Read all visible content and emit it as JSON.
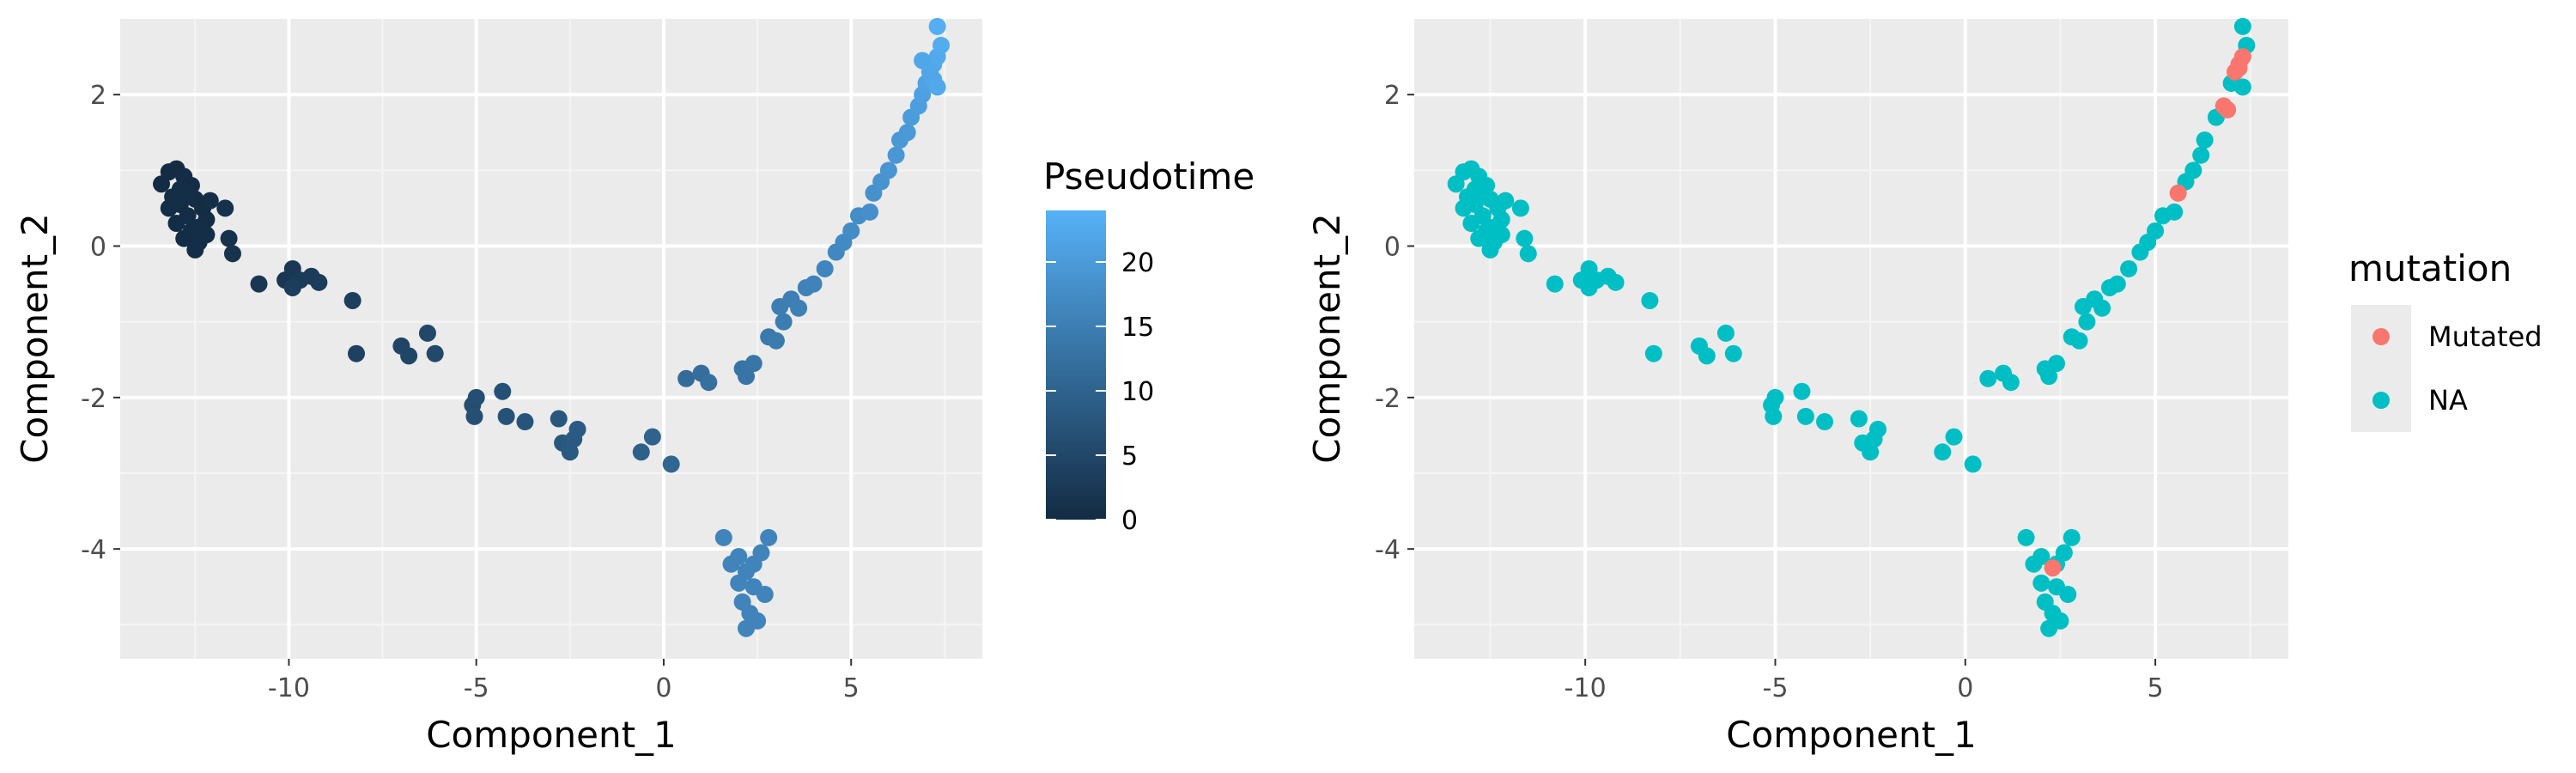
{
  "chart_data": [
    {
      "type": "scatter",
      "title": "",
      "xlabel": "Component_1",
      "ylabel": "Component_2",
      "xlim": [
        -14.5,
        8.5
      ],
      "ylim": [
        -5.45,
        3.0
      ],
      "x_ticks": [
        -10,
        -5,
        0,
        5
      ],
      "y_ticks": [
        -4,
        -2,
        0,
        2
      ],
      "grid": true,
      "legend": {
        "title": "Pseudotime",
        "type": "colorbar",
        "placement": "right",
        "range": [
          0,
          24
        ],
        "ticks": [
          0,
          5,
          10,
          15,
          20
        ],
        "color_low": "#132B43",
        "color_high": "#56B1F7"
      },
      "points": [
        {
          "x": -13.4,
          "y": 0.82,
          "c": 0.1
        },
        {
          "x": -13.2,
          "y": 0.98,
          "c": 0.1
        },
        {
          "x": -13.0,
          "y": 1.02,
          "c": 0.1
        },
        {
          "x": -12.8,
          "y": 0.92,
          "c": 0.2
        },
        {
          "x": -12.6,
          "y": 0.8,
          "c": 0.2
        },
        {
          "x": -13.1,
          "y": 0.65,
          "c": 0.2
        },
        {
          "x": -12.9,
          "y": 0.55,
          "c": 0.2
        },
        {
          "x": -12.7,
          "y": 0.4,
          "c": 0.3
        },
        {
          "x": -12.5,
          "y": 0.62,
          "c": 0.3
        },
        {
          "x": -12.3,
          "y": 0.5,
          "c": 0.3
        },
        {
          "x": -12.2,
          "y": 0.35,
          "c": 0.3
        },
        {
          "x": -12.6,
          "y": 0.2,
          "c": 0.4
        },
        {
          "x": -12.4,
          "y": 0.05,
          "c": 0.4
        },
        {
          "x": -12.8,
          "y": 0.1,
          "c": 0.4
        },
        {
          "x": -13.0,
          "y": 0.3,
          "c": 0.4
        },
        {
          "x": -12.5,
          "y": -0.05,
          "c": 0.5
        },
        {
          "x": -12.9,
          "y": 0.75,
          "c": 0.5
        },
        {
          "x": -12.7,
          "y": 0.68,
          "c": 0.5
        },
        {
          "x": -12.4,
          "y": 0.25,
          "c": 0.5
        },
        {
          "x": -12.2,
          "y": 0.15,
          "c": 0.6
        },
        {
          "x": -13.2,
          "y": 0.5,
          "c": 0.6
        },
        {
          "x": -12.1,
          "y": 0.6,
          "c": 0.6
        },
        {
          "x": -11.7,
          "y": 0.5,
          "c": 1.0
        },
        {
          "x": -11.6,
          "y": 0.1,
          "c": 1.2
        },
        {
          "x": -11.5,
          "y": -0.1,
          "c": 1.4
        },
        {
          "x": -10.8,
          "y": -0.5,
          "c": 2.0
        },
        {
          "x": -10.1,
          "y": -0.45,
          "c": 2.2
        },
        {
          "x": -9.9,
          "y": -0.3,
          "c": 2.4
        },
        {
          "x": -9.7,
          "y": -0.45,
          "c": 2.6
        },
        {
          "x": -9.4,
          "y": -0.4,
          "c": 2.8
        },
        {
          "x": -9.2,
          "y": -0.48,
          "c": 3.0
        },
        {
          "x": -9.9,
          "y": -0.55,
          "c": 3.2
        },
        {
          "x": -8.3,
          "y": -0.72,
          "c": 3.6
        },
        {
          "x": -8.2,
          "y": -1.42,
          "c": 4.0
        },
        {
          "x": -7.0,
          "y": -1.32,
          "c": 4.5
        },
        {
          "x": -6.8,
          "y": -1.45,
          "c": 4.8
        },
        {
          "x": -6.3,
          "y": -1.15,
          "c": 5.0
        },
        {
          "x": -6.1,
          "y": -1.42,
          "c": 5.2
        },
        {
          "x": -5.1,
          "y": -2.1,
          "c": 6.0
        },
        {
          "x": -5.0,
          "y": -2.0,
          "c": 6.2
        },
        {
          "x": -5.05,
          "y": -2.25,
          "c": 6.4
        },
        {
          "x": -4.3,
          "y": -1.92,
          "c": 6.8
        },
        {
          "x": -4.2,
          "y": -2.25,
          "c": 7.0
        },
        {
          "x": -3.7,
          "y": -2.32,
          "c": 7.3
        },
        {
          "x": -2.8,
          "y": -2.28,
          "c": 7.8
        },
        {
          "x": -2.7,
          "y": -2.6,
          "c": 8.0
        },
        {
          "x": -2.5,
          "y": -2.72,
          "c": 8.2
        },
        {
          "x": -2.4,
          "y": -2.55,
          "c": 8.4
        },
        {
          "x": -2.3,
          "y": -2.42,
          "c": 8.6
        },
        {
          "x": -0.6,
          "y": -2.72,
          "c": 9.5
        },
        {
          "x": -0.3,
          "y": -2.52,
          "c": 10.0
        },
        {
          "x": 0.2,
          "y": -2.88,
          "c": 10.5
        },
        {
          "x": 0.6,
          "y": -1.75,
          "c": 11.5
        },
        {
          "x": 1.0,
          "y": -1.68,
          "c": 12.0
        },
        {
          "x": 1.2,
          "y": -1.8,
          "c": 12.3
        },
        {
          "x": 2.1,
          "y": -1.62,
          "c": 13.0
        },
        {
          "x": 2.2,
          "y": -1.72,
          "c": 13.2
        },
        {
          "x": 2.4,
          "y": -1.55,
          "c": 13.4
        },
        {
          "x": 2.8,
          "y": -1.2,
          "c": 14.0
        },
        {
          "x": 3.0,
          "y": -1.25,
          "c": 14.3
        },
        {
          "x": 3.2,
          "y": -1.0,
          "c": 14.6
        },
        {
          "x": 3.1,
          "y": -0.8,
          "c": 14.8
        },
        {
          "x": 3.4,
          "y": -0.7,
          "c": 15.0
        },
        {
          "x": 3.6,
          "y": -0.82,
          "c": 15.2
        },
        {
          "x": 3.8,
          "y": -0.55,
          "c": 15.5
        },
        {
          "x": 4.0,
          "y": -0.5,
          "c": 15.8
        },
        {
          "x": 4.3,
          "y": -0.3,
          "c": 16.2
        },
        {
          "x": 4.6,
          "y": -0.08,
          "c": 16.6
        },
        {
          "x": 4.8,
          "y": 0.05,
          "c": 17.0
        },
        {
          "x": 5.0,
          "y": 0.2,
          "c": 17.3
        },
        {
          "x": 5.2,
          "y": 0.4,
          "c": 17.6
        },
        {
          "x": 5.5,
          "y": 0.45,
          "c": 18.0
        },
        {
          "x": 5.6,
          "y": 0.7,
          "c": 18.3
        },
        {
          "x": 5.8,
          "y": 0.85,
          "c": 18.6
        },
        {
          "x": 6.0,
          "y": 1.0,
          "c": 19.0
        },
        {
          "x": 6.2,
          "y": 1.2,
          "c": 19.3
        },
        {
          "x": 6.3,
          "y": 1.4,
          "c": 19.6
        },
        {
          "x": 6.5,
          "y": 1.5,
          "c": 19.9
        },
        {
          "x": 6.6,
          "y": 1.7,
          "c": 20.2
        },
        {
          "x": 6.8,
          "y": 1.85,
          "c": 20.6
        },
        {
          "x": 6.9,
          "y": 2.0,
          "c": 21.0
        },
        {
          "x": 7.0,
          "y": 2.15,
          "c": 21.4
        },
        {
          "x": 7.1,
          "y": 2.3,
          "c": 21.8
        },
        {
          "x": 7.2,
          "y": 2.4,
          "c": 22.2
        },
        {
          "x": 7.3,
          "y": 2.5,
          "c": 22.6
        },
        {
          "x": 7.4,
          "y": 2.65,
          "c": 23.0
        },
        {
          "x": 7.3,
          "y": 2.9,
          "c": 23.4
        },
        {
          "x": 7.2,
          "y": 2.2,
          "c": 22.0
        },
        {
          "x": 7.3,
          "y": 2.1,
          "c": 22.3
        },
        {
          "x": 6.9,
          "y": 2.45,
          "c": 22.0
        },
        {
          "x": 1.6,
          "y": -3.85,
          "c": 16.0
        },
        {
          "x": 1.8,
          "y": -4.2,
          "c": 16.0
        },
        {
          "x": 2.0,
          "y": -4.1,
          "c": 16.0
        },
        {
          "x": 2.2,
          "y": -4.3,
          "c": 16.0
        },
        {
          "x": 2.4,
          "y": -4.5,
          "c": 16.0
        },
        {
          "x": 2.6,
          "y": -4.05,
          "c": 16.0
        },
        {
          "x": 2.8,
          "y": -3.85,
          "c": 16.0
        },
        {
          "x": 2.1,
          "y": -4.7,
          "c": 16.0
        },
        {
          "x": 2.3,
          "y": -4.85,
          "c": 16.0
        },
        {
          "x": 2.5,
          "y": -4.95,
          "c": 16.0
        },
        {
          "x": 2.2,
          "y": -5.05,
          "c": 16.0
        },
        {
          "x": 2.7,
          "y": -4.6,
          "c": 16.0
        },
        {
          "x": 2.0,
          "y": -4.45,
          "c": 16.0
        },
        {
          "x": 2.4,
          "y": -4.2,
          "c": 16.0
        }
      ]
    },
    {
      "type": "scatter",
      "title": "",
      "xlabel": "Component_1",
      "ylabel": "Component_2",
      "xlim": [
        -14.5,
        8.5
      ],
      "ylim": [
        -5.45,
        3.0
      ],
      "x_ticks": [
        -10,
        -5,
        0,
        5
      ],
      "y_ticks": [
        -4,
        -2,
        0,
        2
      ],
      "grid": true,
      "legend": {
        "title": "mutation",
        "type": "categorical",
        "placement": "right",
        "entries": [
          {
            "label": "Mutated",
            "color": "#F8766D"
          },
          {
            "label": "NA",
            "color": "#00BFC4"
          }
        ]
      },
      "series": [
        {
          "name": "NA",
          "color": "#00BFC4",
          "points": [
            {
              "x": -13.4,
              "y": 0.82
            },
            {
              "x": -13.2,
              "y": 0.98
            },
            {
              "x": -13.0,
              "y": 1.02
            },
            {
              "x": -12.8,
              "y": 0.92
            },
            {
              "x": -12.6,
              "y": 0.8
            },
            {
              "x": -13.1,
              "y": 0.65
            },
            {
              "x": -12.9,
              "y": 0.55
            },
            {
              "x": -12.7,
              "y": 0.4
            },
            {
              "x": -12.5,
              "y": 0.62
            },
            {
              "x": -12.3,
              "y": 0.5
            },
            {
              "x": -12.2,
              "y": 0.35
            },
            {
              "x": -12.6,
              "y": 0.2
            },
            {
              "x": -12.4,
              "y": 0.05
            },
            {
              "x": -12.8,
              "y": 0.1
            },
            {
              "x": -13.0,
              "y": 0.3
            },
            {
              "x": -12.5,
              "y": -0.05
            },
            {
              "x": -12.9,
              "y": 0.75
            },
            {
              "x": -12.7,
              "y": 0.68
            },
            {
              "x": -12.4,
              "y": 0.25
            },
            {
              "x": -12.2,
              "y": 0.15
            },
            {
              "x": -13.2,
              "y": 0.5
            },
            {
              "x": -12.1,
              "y": 0.6
            },
            {
              "x": -11.7,
              "y": 0.5
            },
            {
              "x": -11.6,
              "y": 0.1
            },
            {
              "x": -11.5,
              "y": -0.1
            },
            {
              "x": -10.8,
              "y": -0.5
            },
            {
              "x": -10.1,
              "y": -0.45
            },
            {
              "x": -9.9,
              "y": -0.3
            },
            {
              "x": -9.7,
              "y": -0.45
            },
            {
              "x": -9.4,
              "y": -0.4
            },
            {
              "x": -9.2,
              "y": -0.48
            },
            {
              "x": -9.9,
              "y": -0.55
            },
            {
              "x": -8.3,
              "y": -0.72
            },
            {
              "x": -8.2,
              "y": -1.42
            },
            {
              "x": -7.0,
              "y": -1.32
            },
            {
              "x": -6.8,
              "y": -1.45
            },
            {
              "x": -6.3,
              "y": -1.15
            },
            {
              "x": -6.1,
              "y": -1.42
            },
            {
              "x": -5.1,
              "y": -2.1
            },
            {
              "x": -5.0,
              "y": -2.0
            },
            {
              "x": -5.05,
              "y": -2.25
            },
            {
              "x": -4.3,
              "y": -1.92
            },
            {
              "x": -4.2,
              "y": -2.25
            },
            {
              "x": -3.7,
              "y": -2.32
            },
            {
              "x": -2.8,
              "y": -2.28
            },
            {
              "x": -2.7,
              "y": -2.6
            },
            {
              "x": -2.5,
              "y": -2.72
            },
            {
              "x": -2.4,
              "y": -2.55
            },
            {
              "x": -2.3,
              "y": -2.42
            },
            {
              "x": -0.6,
              "y": -2.72
            },
            {
              "x": -0.3,
              "y": -2.52
            },
            {
              "x": 0.2,
              "y": -2.88
            },
            {
              "x": 0.6,
              "y": -1.75
            },
            {
              "x": 1.0,
              "y": -1.68
            },
            {
              "x": 1.2,
              "y": -1.8
            },
            {
              "x": 2.1,
              "y": -1.62
            },
            {
              "x": 2.2,
              "y": -1.72
            },
            {
              "x": 2.4,
              "y": -1.55
            },
            {
              "x": 2.8,
              "y": -1.2
            },
            {
              "x": 3.0,
              "y": -1.25
            },
            {
              "x": 3.2,
              "y": -1.0
            },
            {
              "x": 3.1,
              "y": -0.8
            },
            {
              "x": 3.4,
              "y": -0.7
            },
            {
              "x": 3.6,
              "y": -0.82
            },
            {
              "x": 3.8,
              "y": -0.55
            },
            {
              "x": 4.0,
              "y": -0.5
            },
            {
              "x": 4.3,
              "y": -0.3
            },
            {
              "x": 4.6,
              "y": -0.08
            },
            {
              "x": 4.8,
              "y": 0.05
            },
            {
              "x": 5.0,
              "y": 0.2
            },
            {
              "x": 5.2,
              "y": 0.4
            },
            {
              "x": 5.5,
              "y": 0.45
            },
            {
              "x": 5.8,
              "y": 0.85
            },
            {
              "x": 6.0,
              "y": 1.0
            },
            {
              "x": 6.2,
              "y": 1.2
            },
            {
              "x": 6.3,
              "y": 1.4
            },
            {
              "x": 6.6,
              "y": 1.7
            },
            {
              "x": 7.0,
              "y": 2.15
            },
            {
              "x": 7.4,
              "y": 2.65
            },
            {
              "x": 7.3,
              "y": 2.9
            },
            {
              "x": 7.3,
              "y": 2.1
            },
            {
              "x": 1.6,
              "y": -3.85
            },
            {
              "x": 1.8,
              "y": -4.2
            },
            {
              "x": 2.0,
              "y": -4.1
            },
            {
              "x": 2.4,
              "y": -4.5
            },
            {
              "x": 2.6,
              "y": -4.05
            },
            {
              "x": 2.8,
              "y": -3.85
            },
            {
              "x": 2.1,
              "y": -4.7
            },
            {
              "x": 2.3,
              "y": -4.85
            },
            {
              "x": 2.5,
              "y": -4.95
            },
            {
              "x": 2.2,
              "y": -5.05
            },
            {
              "x": 2.7,
              "y": -4.6
            },
            {
              "x": 2.0,
              "y": -4.45
            },
            {
              "x": 2.4,
              "y": -4.2
            }
          ]
        },
        {
          "name": "Mutated",
          "color": "#F8766D",
          "points": [
            {
              "x": 2.3,
              "y": -4.25
            },
            {
              "x": 5.6,
              "y": 0.7
            },
            {
              "x": 6.8,
              "y": 1.85
            },
            {
              "x": 6.9,
              "y": 1.8
            },
            {
              "x": 7.1,
              "y": 2.3
            },
            {
              "x": 7.2,
              "y": 2.4
            },
            {
              "x": 7.3,
              "y": 2.5
            },
            {
              "x": 7.2,
              "y": 2.35
            }
          ]
        }
      ]
    }
  ]
}
